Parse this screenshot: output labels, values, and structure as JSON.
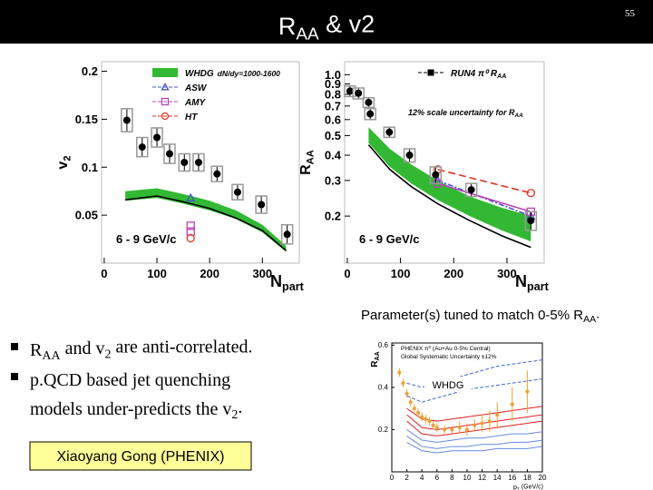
{
  "header": {
    "title": [
      "R",
      "AA",
      " & v2"
    ],
    "page": "55"
  },
  "plots": [
    {
      "type": "scatter",
      "xlim": [
        -5,
        370
      ],
      "ylim": [
        0,
        0.21
      ],
      "xticks": [
        0,
        100,
        200,
        300
      ],
      "yticks": [
        0.05,
        0.1,
        0.15,
        0.2
      ],
      "y_label": [
        "v",
        "2"
      ],
      "x_label": [
        "N",
        "part"
      ],
      "note": "6 - 9 GeV/c",
      "points": {
        "color": "#000000",
        "x": [
          43,
          72,
          100,
          124,
          152,
          179,
          214,
          253,
          298,
          347
        ],
        "values": [
          0.149,
          0.121,
          0.131,
          0.114,
          0.105,
          0.105,
          0.093,
          0.074,
          0.061,
          0.03
        ],
        "errors": [
          0.012,
          0.01,
          0.01,
          0.01,
          0.009,
          0.009,
          0.008,
          0.008,
          0.009,
          0.01
        ]
      },
      "band": {
        "color": "#33b833",
        "x": [
          40,
          100,
          150,
          200,
          250,
          300,
          345
        ],
        "low": [
          0.065,
          0.068,
          0.062,
          0.055,
          0.046,
          0.032,
          0.012
        ],
        "high": [
          0.075,
          0.078,
          0.072,
          0.065,
          0.055,
          0.04,
          0.018
        ]
      },
      "curves": [
        {
          "color": "#000000",
          "x": [
            40,
            100,
            150,
            200,
            250,
            300,
            345
          ],
          "values": [
            0.066,
            0.07,
            0.064,
            0.057,
            0.047,
            0.034,
            0.013
          ]
        }
      ],
      "markers": [
        {
          "shape": "triangle",
          "color": "#4455cc",
          "x": [
            164
          ],
          "values": [
            0.068
          ]
        },
        {
          "shape": "square",
          "color": "#bb44bb",
          "x": [
            164,
            164
          ],
          "values": [
            0.039,
            0.033
          ]
        },
        {
          "shape": "circle",
          "color": "#dd3322",
          "x": [
            164
          ],
          "values": [
            0.026
          ]
        }
      ],
      "legend": [
        {
          "label": "WHDG",
          "detail": "dN/dy=1000-1600",
          "color": "#33b833",
          "marker": "band"
        },
        {
          "label": "ASW",
          "color": "#4455cc",
          "marker": "triangle"
        },
        {
          "label": "AMY",
          "color": "#bb44bb",
          "marker": "square"
        },
        {
          "label": "HT",
          "color": "#dd3322",
          "marker": "circle"
        }
      ]
    },
    {
      "type": "scatter",
      "log": true,
      "xlim": [
        -5,
        370
      ],
      "ylim": [
        0.117,
        1.16
      ],
      "xticks": [
        0,
        100,
        200,
        300
      ],
      "yticks": [
        {
          "value": 1,
          "label": "1.0"
        },
        0.9,
        0.8,
        0.7,
        0.6,
        0.5,
        0.4,
        0.3,
        0.2
      ],
      "y_label": [
        "R",
        "AA"
      ],
      "x_label": [
        "N",
        "part"
      ],
      "note": "6 - 9 GeV/c",
      "scale_note": [
        "12% scale uncertainty for R",
        "AA"
      ],
      "points": {
        "color": "#000000",
        "x": [
          5,
          21,
          40,
          43,
          79,
          117,
          166,
          233,
          345
        ],
        "values": [
          0.83,
          0.81,
          0.73,
          0.64,
          0.52,
          0.4,
          0.32,
          0.27,
          0.19
        ],
        "errors": [
          0.05,
          0.05,
          0.04,
          0.04,
          0.03,
          0.03,
          0.03,
          0.02,
          0.02
        ]
      },
      "band": {
        "color": "#33b833",
        "x": [
          40,
          80,
          120,
          170,
          230,
          290,
          345
        ],
        "low": [
          0.46,
          0.35,
          0.29,
          0.24,
          0.2,
          0.17,
          0.15
        ],
        "high": [
          0.55,
          0.43,
          0.36,
          0.3,
          0.25,
          0.22,
          0.2
        ]
      },
      "curves": [
        {
          "color": "#000000",
          "x": [
            40,
            80,
            120,
            170,
            230,
            290,
            345
          ],
          "values": [
            0.45,
            0.34,
            0.28,
            0.23,
            0.19,
            0.16,
            0.14
          ]
        },
        {
          "color": "#dd3322",
          "dash": "8 4",
          "x": [
            170,
            345
          ],
          "values": [
            0.34,
            0.26
          ]
        },
        {
          "color": "#4455cc",
          "dash": "6 2 2 2",
          "x": [
            170,
            345
          ],
          "values": [
            0.3,
            0.2
          ]
        },
        {
          "color": "#bb44bb",
          "x": [
            170,
            345
          ],
          "values": [
            0.29,
            0.21
          ]
        }
      ],
      "markers": [
        {
          "shape": "circle",
          "color": "#dd3322",
          "x": [
            170,
            345
          ],
          "values": [
            0.34,
            0.26
          ]
        },
        {
          "shape": "triangle",
          "color": "#4455cc",
          "x": [
            170,
            345
          ],
          "values": [
            0.3,
            0.2
          ]
        },
        {
          "shape": "square",
          "color": "#bb44bb",
          "x": [
            170,
            345
          ],
          "values": [
            0.29,
            0.21
          ]
        }
      ],
      "legend": [
        {
          "label": "RUN4 π⁰ R",
          "sub": "AA",
          "color": "#000000",
          "marker": "filled"
        }
      ]
    },
    {
      "type": "line",
      "xlim": [
        0,
        20
      ],
      "ylim": [
        0,
        0.61
      ],
      "xticks": [
        0,
        2,
        4,
        6,
        8,
        10,
        12,
        14,
        16,
        18,
        20
      ],
      "yticks": [
        0.2,
        0.4,
        0.6
      ],
      "y_label": [
        "R",
        "AA"
      ],
      "x_label": [
        "p",
        "T",
        " (GeV/c)"
      ],
      "label": "WHDG",
      "legend_text": [
        "PHENIX π⁰ (Au+Au 0-5% Central)",
        "Global Systematic Uncertainty ±12%"
      ],
      "points": {
        "color": "#f0a030",
        "x": [
          1,
          1.5,
          2,
          2.5,
          3,
          3.5,
          4,
          4.5,
          5,
          5.5,
          6,
          7,
          8,
          9,
          10,
          11,
          12,
          13,
          14,
          16,
          18
        ],
        "values": [
          0.47,
          0.42,
          0.37,
          0.33,
          0.3,
          0.28,
          0.26,
          0.25,
          0.24,
          0.22,
          0.21,
          0.2,
          0.2,
          0.21,
          0.2,
          0.22,
          0.23,
          0.24,
          0.27,
          0.32,
          0.38
        ],
        "errors": [
          0.02,
          0.02,
          0.02,
          0.02,
          0.02,
          0.02,
          0.02,
          0.02,
          0.02,
          0.02,
          0.02,
          0.02,
          0.02,
          0.03,
          0.03,
          0.03,
          0.04,
          0.05,
          0.06,
          0.08,
          0.1
        ]
      },
      "curves": [
        {
          "color": "#4466cc",
          "dash": "4 2",
          "x": [
            2,
            4,
            6,
            8,
            10,
            12,
            14,
            16,
            18,
            20
          ],
          "values": [
            0.42,
            0.4,
            0.42,
            0.44,
            0.46,
            0.48,
            0.5,
            0.51,
            0.52,
            0.53
          ]
        },
        {
          "color": "#4466cc",
          "dash": "4 2",
          "x": [
            2,
            4,
            6,
            8,
            10,
            12,
            14,
            16,
            18,
            20
          ],
          "values": [
            0.36,
            0.33,
            0.35,
            0.37,
            0.39,
            0.4,
            0.41,
            0.42,
            0.43,
            0.44
          ]
        },
        {
          "color": "#dd2222",
          "x": [
            2,
            4,
            6,
            8,
            10,
            12,
            14,
            16,
            18,
            20
          ],
          "values": [
            0.3,
            0.25,
            0.24,
            0.25,
            0.26,
            0.27,
            0.28,
            0.29,
            0.3,
            0.31
          ]
        },
        {
          "color": "#dd2222",
          "x": [
            2,
            4,
            6,
            8,
            10,
            12,
            14,
            16,
            18,
            20
          ],
          "values": [
            0.27,
            0.21,
            0.2,
            0.21,
            0.22,
            0.23,
            0.24,
            0.25,
            0.26,
            0.27
          ]
        },
        {
          "color": "#dd2222",
          "x": [
            2,
            4,
            6,
            8,
            10,
            12,
            14,
            16,
            18,
            20
          ],
          "values": [
            0.24,
            0.18,
            0.17,
            0.18,
            0.19,
            0.2,
            0.21,
            0.22,
            0.23,
            0.24
          ]
        },
        {
          "color": "#6688dd",
          "x": [
            2,
            4,
            6,
            8,
            10,
            12,
            14,
            16,
            18,
            20
          ],
          "values": [
            0.2,
            0.15,
            0.14,
            0.15,
            0.16,
            0.16,
            0.17,
            0.18,
            0.18,
            0.19
          ]
        },
        {
          "color": "#6688dd",
          "x": [
            2,
            4,
            6,
            8,
            10,
            12,
            14,
            16,
            18,
            20
          ],
          "values": [
            0.17,
            0.12,
            0.11,
            0.12,
            0.12,
            0.13,
            0.13,
            0.14,
            0.14,
            0.15
          ]
        },
        {
          "color": "#6688dd",
          "x": [
            2,
            4,
            6,
            8,
            10,
            12,
            14,
            16,
            18,
            20
          ],
          "values": [
            0.14,
            0.1,
            0.09,
            0.1,
            0.1,
            0.1,
            0.11,
            0.11,
            0.11,
            0.12
          ]
        }
      ]
    }
  ],
  "caption": [
    "Parameter(s) tuned to match 0-5% R",
    "AA",
    "."
  ],
  "bullets": [
    [
      "R",
      "AA",
      " and v",
      "2",
      " are anti-correlated."
    ],
    [
      "p.QCD based jet quenching"
    ],
    [
      "models under-predicts the v",
      "2",
      "."
    ]
  ],
  "author": "Xiaoyang Gong (PHENIX)"
}
